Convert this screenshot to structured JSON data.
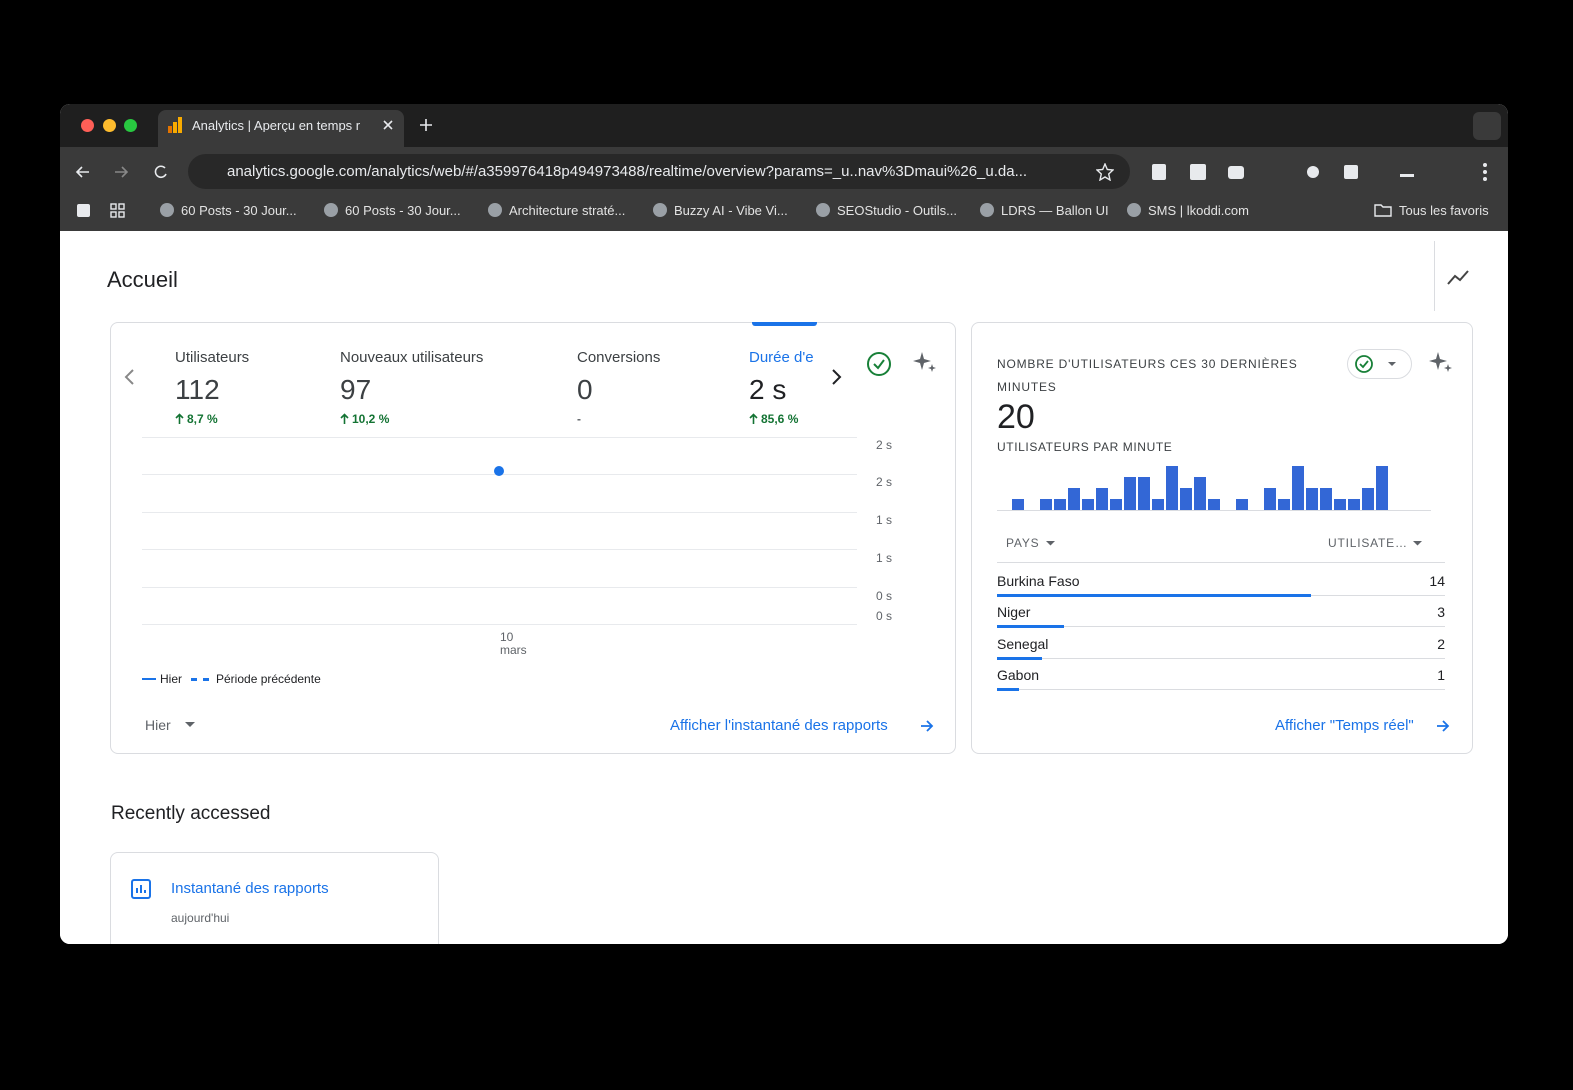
{
  "browser": {
    "tab_title": "Analytics | Aperçu en temps r",
    "url": "analytics.google.com/analytics/web/#/a359976418p494973488/realtime/overview?params=_u..nav%3Dmaui%26_u.da...",
    "bookmarks": [
      "60 Posts - 30 Jour...",
      "60 Posts - 30 Jour...",
      "Architecture straté...",
      "Buzzy AI - Vibe Vi...",
      "SEOStudio - Outils...",
      "LDRS — Ballon UI",
      "SMS | lkoddi.com"
    ],
    "all_bookmarks": "Tous les favoris"
  },
  "page": {
    "title": "Accueil"
  },
  "kpis": [
    {
      "label": "Utilisateurs",
      "value": "112",
      "change": "8,7 %"
    },
    {
      "label": "Nouveaux utilisateurs",
      "value": "97",
      "change": "10,2 %"
    },
    {
      "label": "Conversions",
      "value": "0",
      "change": "-"
    },
    {
      "label": "Durée d'e",
      "value": "2 s",
      "change": "85,6 %"
    }
  ],
  "line_chart": {
    "yticks": [
      "2 s",
      "2 s",
      "1 s",
      "1 s",
      "0 s",
      "0 s"
    ],
    "xlabel": [
      "10",
      "mars"
    ],
    "legend": [
      "Hier",
      "Période précédente"
    ],
    "date_range": "Hier",
    "link": "Afficher l'instantané des rapports"
  },
  "realtime": {
    "title": "NOMBRE D'UTILISATEURS CES 30 DERNIÈRES MINUTES",
    "count": 20,
    "subtitle": "UTILISATEURS PAR MINUTE",
    "per_minute": [
      1,
      0,
      1,
      1,
      2,
      1,
      2,
      1,
      3,
      3,
      1,
      4,
      2,
      3,
      1,
      0,
      1,
      0,
      2,
      1,
      4,
      2,
      2,
      1,
      1,
      2,
      4,
      0,
      0,
      0
    ],
    "columns": [
      "PAYS",
      "UTILISATE…"
    ],
    "rows": [
      {
        "country": "Burkina Faso",
        "users": 14
      },
      {
        "country": "Niger",
        "users": 3
      },
      {
        "country": "Senegal",
        "users": 2
      },
      {
        "country": "Gabon",
        "users": 1
      }
    ],
    "link": "Afficher \"Temps réel\""
  },
  "recent": {
    "title": "Recently accessed",
    "cards": [
      {
        "title": "Instantané des rapports",
        "date": "aujourd'hui"
      }
    ]
  }
}
